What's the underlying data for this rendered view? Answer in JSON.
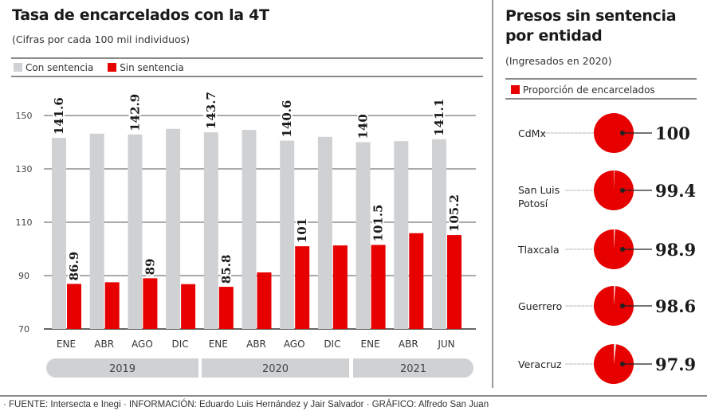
{
  "left": {
    "title": "Tasa de encarcelados con la 4T",
    "subtitle": "(Cifras por cada 100 mil individuos)",
    "legend": [
      {
        "label": "Con sentencia",
        "color": "#d0d1d3"
      },
      {
        "label": "Sin sentencia",
        "color": "#e60000"
      }
    ]
  },
  "right": {
    "title_line1": "Presos sin sentencia",
    "title_line2": "por entidad",
    "subtitle": "(Ingresados en 2020)",
    "legend": {
      "label": "Proporción de encarcelados",
      "color": "#e60000"
    }
  },
  "footer": "· FUENTE: Intersecta e Inegi · INFORMACIÓN: Eduardo Luis Hernández y Jair Salvador · GRÁFICO: Alfredo San Juan",
  "chart_data": [
    {
      "type": "bar",
      "title": "Tasa de encarcelados con la 4T",
      "subtitle": "(Cifras por cada 100 mil individuos)",
      "xlabel": "",
      "ylabel": "",
      "ylim": [
        70,
        150
      ],
      "yticks": [
        70,
        90,
        110,
        130,
        150
      ],
      "grid": true,
      "legend_position": "top-left",
      "categories": [
        "ENE",
        "ABR",
        "AGO",
        "DIC",
        "ENE",
        "ABR",
        "AGO",
        "DIC",
        "ENE",
        "ABR",
        "JUN"
      ],
      "year_groups": [
        {
          "label": "2019",
          "count": 4
        },
        {
          "label": "2020",
          "count": 4
        },
        {
          "label": "2021",
          "count": 3
        }
      ],
      "series": [
        {
          "name": "Con sentencia",
          "color": "#d0d1d3",
          "values": [
            141.6,
            143.2,
            142.9,
            145.0,
            143.7,
            144.6,
            140.6,
            142.0,
            140.0,
            140.4,
            141.1
          ],
          "labels": [
            "141.6",
            "",
            "142.9",
            "",
            "143.7",
            "",
            "140.6",
            "",
            "140",
            "",
            "141.1"
          ]
        },
        {
          "name": "Sin sentencia",
          "color": "#e60000",
          "values": [
            86.9,
            87.5,
            89.0,
            86.8,
            85.8,
            91.2,
            101.0,
            101.3,
            101.5,
            105.9,
            105.2
          ],
          "labels": [
            "86.9",
            "",
            "89",
            "",
            "85.8",
            "",
            "101",
            "",
            "101.5",
            "",
            "105.2"
          ]
        }
      ]
    },
    {
      "type": "pie",
      "title": "Presos sin sentencia por entidad",
      "subtitle": "(Ingresados en 2020)",
      "legend": [
        "Proporción de encarcelados"
      ],
      "items": [
        {
          "entity": [
            "CdMx"
          ],
          "value": 100,
          "label": "100"
        },
        {
          "entity": [
            "San Luis",
            "Potosí"
          ],
          "value": 99.4,
          "label": "99.4"
        },
        {
          "entity": [
            "Tlaxcala"
          ],
          "value": 98.9,
          "label": "98.9"
        },
        {
          "entity": [
            "Guerrero"
          ],
          "value": 98.6,
          "label": "98.6"
        },
        {
          "entity": [
            "Veracruz"
          ],
          "value": 97.9,
          "label": "97.9"
        }
      ]
    }
  ]
}
